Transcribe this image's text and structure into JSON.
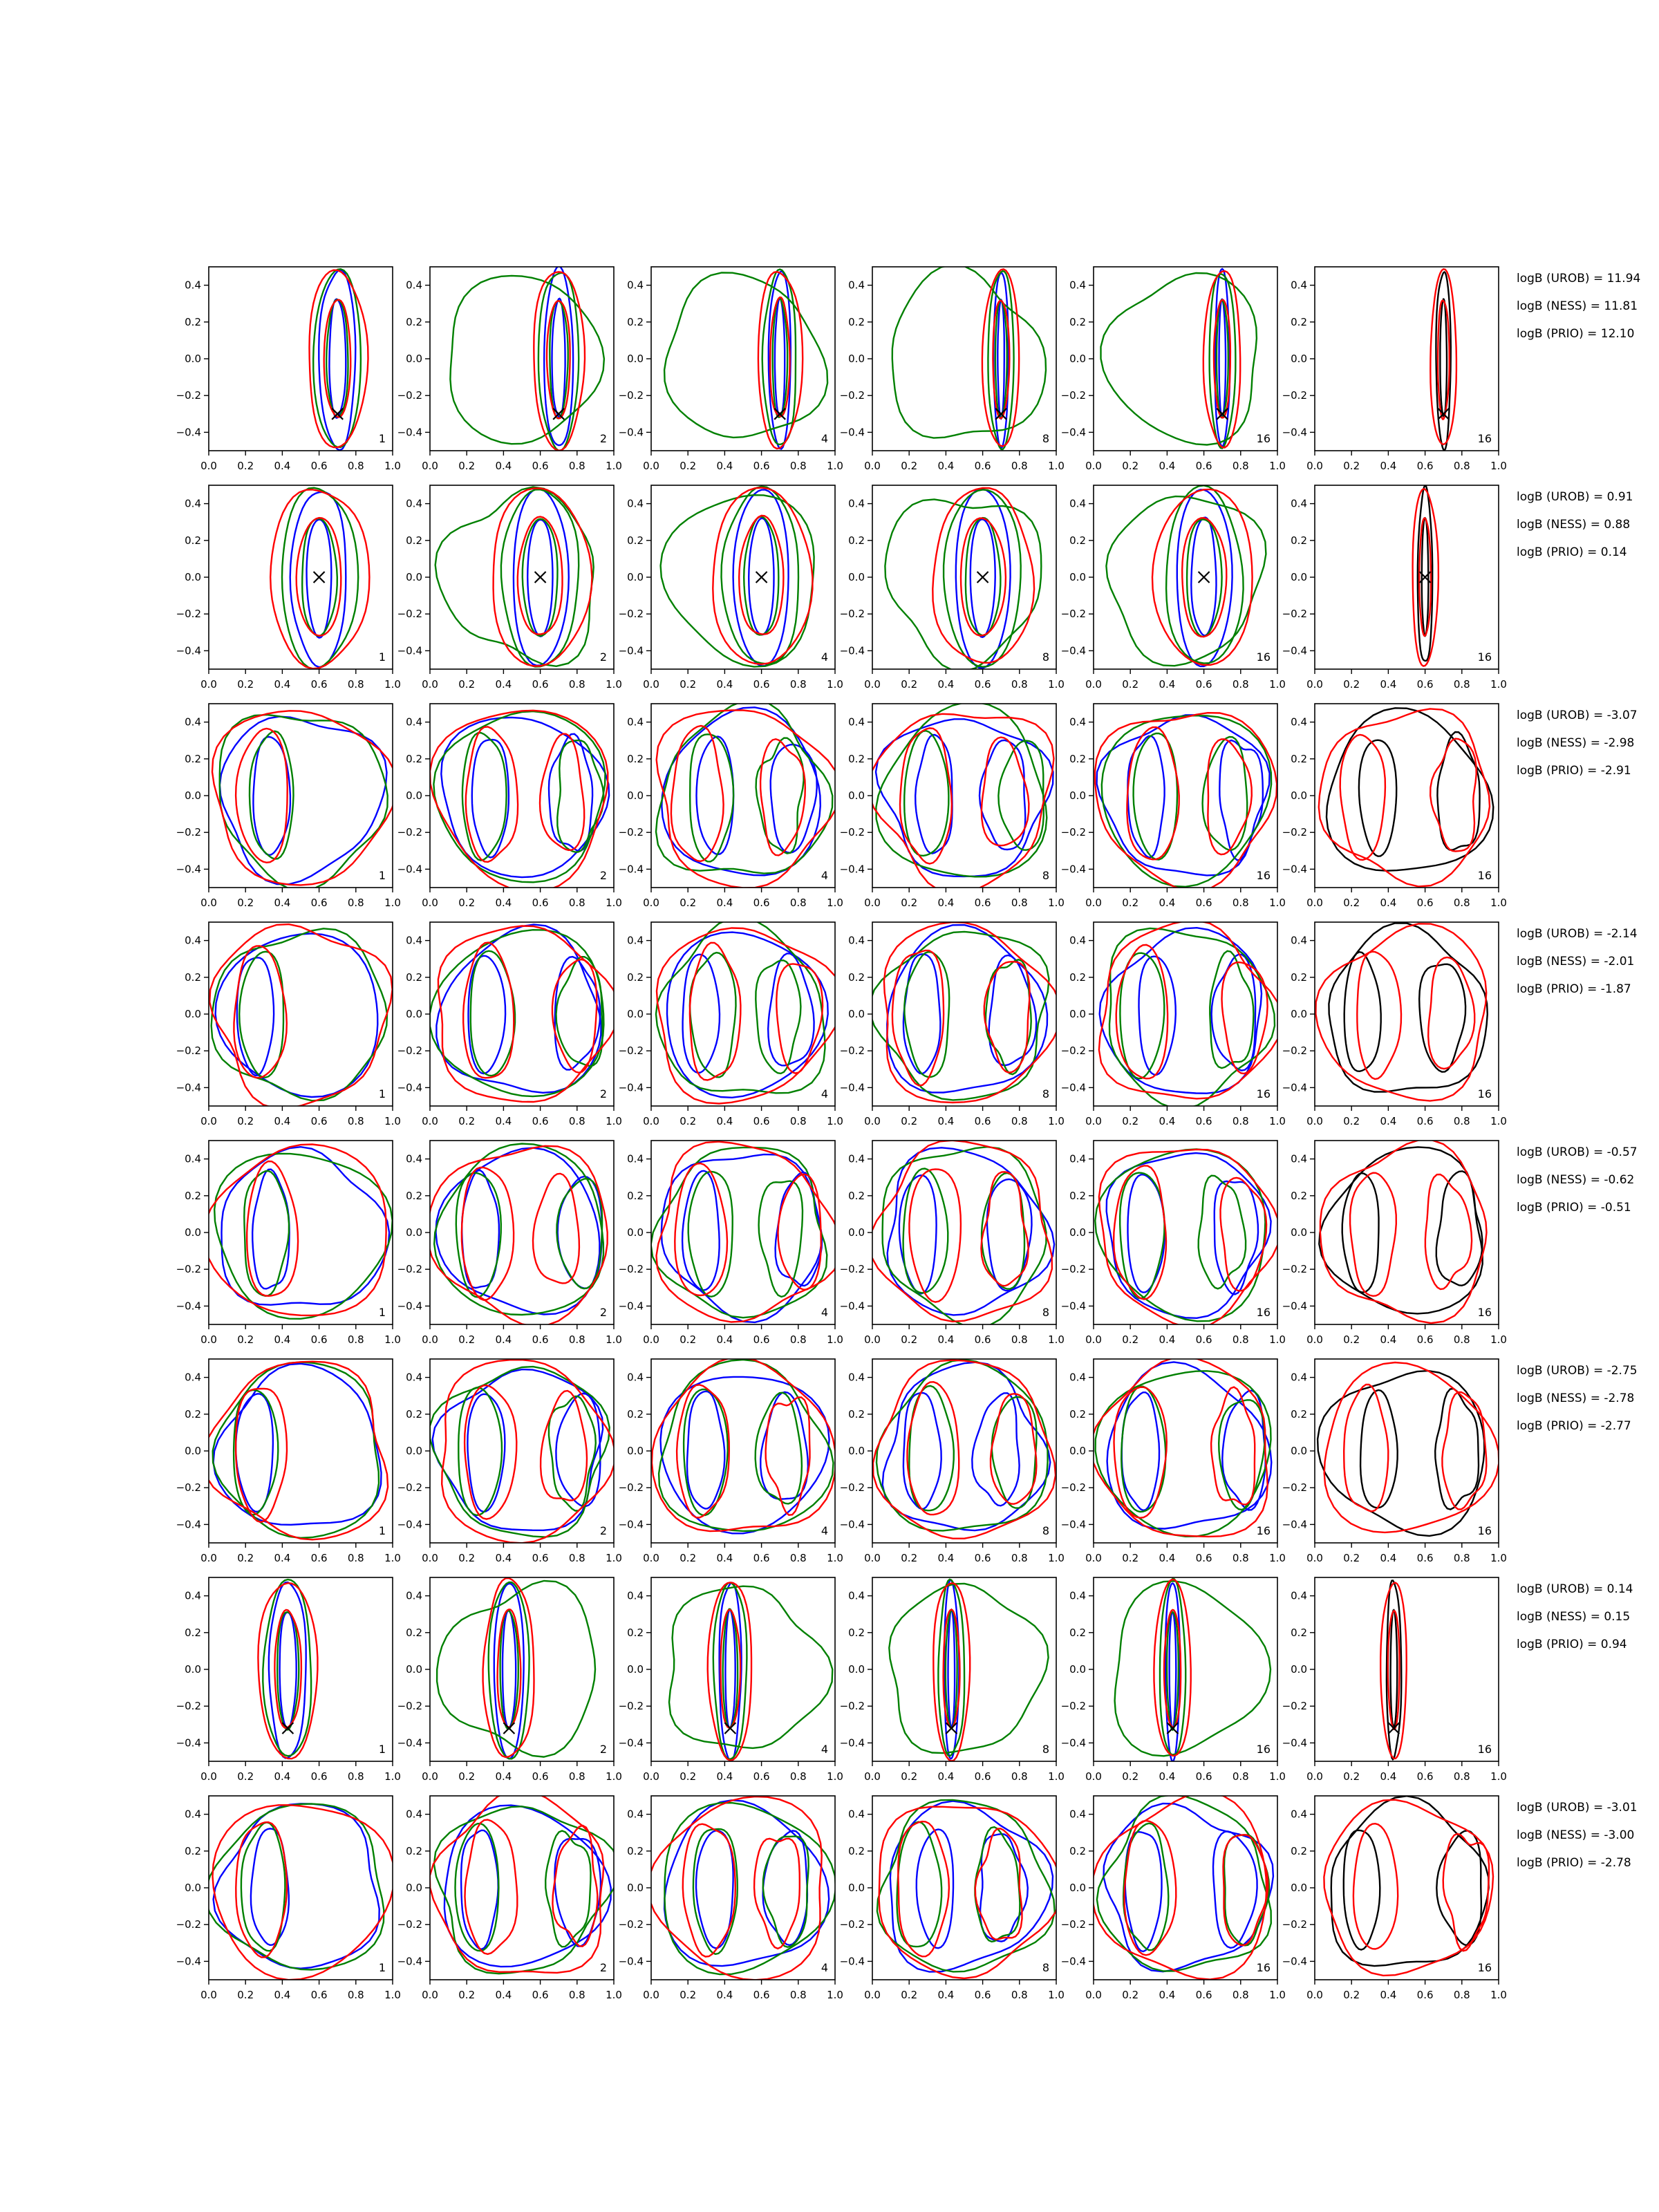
{
  "figure": {
    "row_count": 8,
    "column_count": 6,
    "x_ticks": [
      "0.0",
      "0.2",
      "0.4",
      "0.6",
      "0.8",
      "1.0"
    ],
    "y_ticks": [
      "0.4",
      "0.2",
      "0.0",
      "−0.2",
      "−0.4"
    ],
    "column_labels": [
      "1",
      "2",
      "4",
      "8",
      "16",
      "16"
    ],
    "colors": {
      "blue": "#0000ff",
      "green": "#008000",
      "red": "#ff0000",
      "black": "#000000"
    }
  },
  "chart_data": [
    {
      "type": "contour",
      "row": 1,
      "xlim": [
        0,
        1
      ],
      "ylim": [
        -0.5,
        0.5
      ],
      "truth_marker": {
        "x": 0.7,
        "y": -0.3
      },
      "panel_labels": [
        "1",
        "2",
        "4",
        "8",
        "16",
        "16"
      ],
      "annotations": [
        "logB (UROB) = 11.94",
        "logB (NESS) = 11.81",
        "logB (PRIO) = 12.10"
      ]
    },
    {
      "type": "contour",
      "row": 2,
      "xlim": [
        0,
        1
      ],
      "ylim": [
        -0.5,
        0.5
      ],
      "truth_marker": {
        "x": 0.6,
        "y": 0.0
      },
      "panel_labels": [
        "1",
        "2",
        "4",
        "8",
        "16",
        "16"
      ],
      "annotations": [
        "logB (UROB) = 0.91",
        "logB (NESS) = 0.88",
        "logB (PRIO) = 0.14"
      ]
    },
    {
      "type": "contour",
      "row": 3,
      "xlim": [
        0,
        1
      ],
      "ylim": [
        -0.5,
        0.5
      ],
      "truth_marker": null,
      "panel_labels": [
        "1",
        "2",
        "4",
        "8",
        "16",
        "16"
      ],
      "annotations": [
        "logB (UROB) = -3.07",
        "logB (NESS) = -2.98",
        "logB (PRIO) = -2.91"
      ]
    },
    {
      "type": "contour",
      "row": 4,
      "xlim": [
        0,
        1
      ],
      "ylim": [
        -0.5,
        0.5
      ],
      "truth_marker": null,
      "panel_labels": [
        "1",
        "2",
        "4",
        "8",
        "16",
        "16"
      ],
      "annotations": [
        "logB (UROB) = -2.14",
        "logB (NESS) = -2.01",
        "logB (PRIO) = -1.87"
      ]
    },
    {
      "type": "contour",
      "row": 5,
      "xlim": [
        0,
        1
      ],
      "ylim": [
        -0.5,
        0.5
      ],
      "truth_marker": null,
      "panel_labels": [
        "1",
        "2",
        "4",
        "8",
        "16",
        "16"
      ],
      "annotations": [
        "logB (UROB) = -0.57",
        "logB (NESS) = -0.62",
        "logB (PRIO) = -0.51"
      ]
    },
    {
      "type": "contour",
      "row": 6,
      "xlim": [
        0,
        1
      ],
      "ylim": [
        -0.5,
        0.5
      ],
      "truth_marker": null,
      "panel_labels": [
        "1",
        "2",
        "4",
        "8",
        "16",
        "16"
      ],
      "annotations": [
        "logB (UROB) = -2.75",
        "logB (NESS) = -2.78",
        "logB (PRIO) = -2.77"
      ]
    },
    {
      "type": "contour",
      "row": 7,
      "xlim": [
        0,
        1
      ],
      "ylim": [
        -0.5,
        0.5
      ],
      "truth_marker": {
        "x": 0.43,
        "y": -0.32
      },
      "panel_labels": [
        "1",
        "2",
        "4",
        "8",
        "16",
        "16"
      ],
      "annotations": [
        "logB (UROB) = 0.14",
        "logB (NESS) = 0.15",
        "logB (PRIO) = 0.94"
      ]
    },
    {
      "type": "contour",
      "row": 8,
      "xlim": [
        0,
        1
      ],
      "ylim": [
        -0.5,
        0.5
      ],
      "truth_marker": null,
      "panel_labels": [
        "1",
        "2",
        "4",
        "8",
        "16",
        "16"
      ],
      "annotations": [
        "logB (UROB) = -3.01",
        "logB (NESS) = -3.00",
        "logB (PRIO) = -2.78"
      ]
    }
  ]
}
